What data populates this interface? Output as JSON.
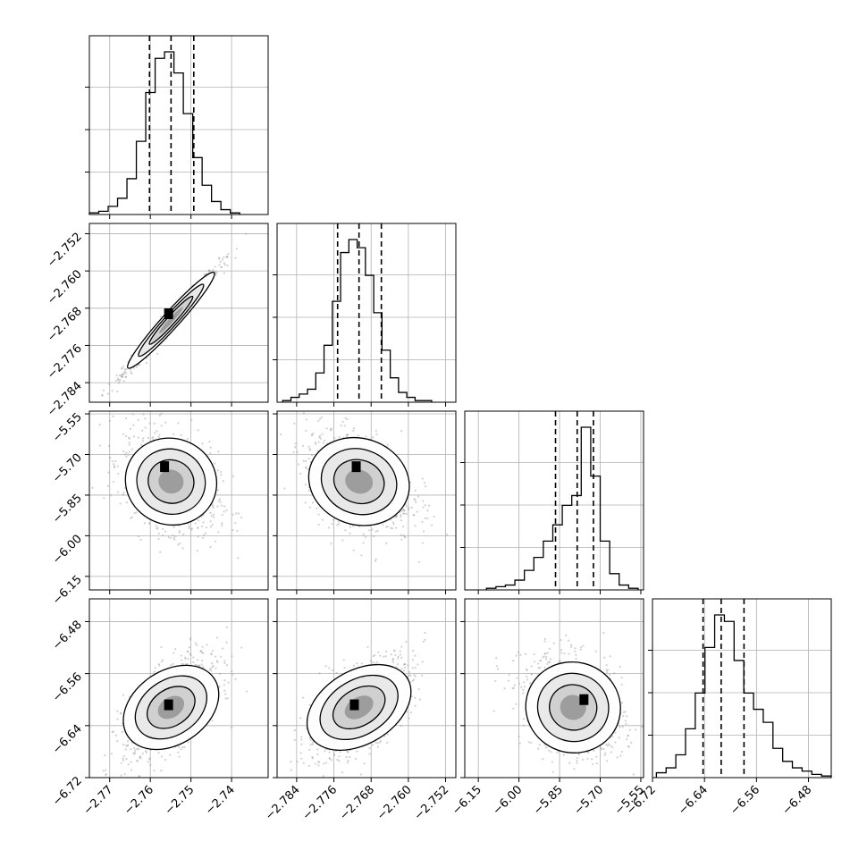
{
  "chart_data": {
    "type": "corner",
    "colors": {
      "hist": "#000000",
      "grid": "#b0b0b0",
      "scatter": "#9a9a9a",
      "contour": "#000000",
      "density_max": "#000000"
    },
    "grid": true,
    "parameters": [
      {
        "range": [
          -2.775,
          -2.731
        ],
        "ticks": [
          -2.77,
          -2.76,
          -2.75,
          -2.74
        ],
        "tick_labels": [
          "−2.77",
          "−2.76",
          "−2.75",
          "−2.74"
        ],
        "quantiles": [
          -2.7602,
          -2.7549,
          -2.7493
        ],
        "hist_counts": [
          1,
          2,
          5,
          10,
          22,
          45,
          75,
          96,
          100,
          87,
          62,
          35,
          18,
          8,
          3,
          1
        ],
        "hist_range": [
          -2.775,
          -2.738
        ],
        "scatter": {
          "mean": -2.7549,
          "sd": 0.0053
        }
      },
      {
        "range": [
          -2.7882,
          -2.7498
        ],
        "ticks": [
          -2.784,
          -2.776,
          -2.768,
          -2.76,
          -2.752
        ],
        "tick_labels": [
          "−2.784",
          "−2.776",
          "−2.768",
          "−2.760",
          "−2.752"
        ],
        "quantiles": [
          -2.7752,
          -2.7706,
          -2.7658
        ],
        "hist_counts": [
          1,
          3,
          5,
          8,
          18,
          35,
          62,
          92,
          100,
          95,
          78,
          55,
          32,
          15,
          6,
          3,
          1,
          1
        ],
        "hist_range": [
          -2.787,
          -2.755
        ],
        "scatter": {
          "mean": -2.7706,
          "sd": 0.0052
        }
      },
      {
        "range": [
          -6.2,
          -5.54
        ],
        "ticks": [
          -6.15,
          -6.0,
          -5.85,
          -5.7,
          -5.55
        ],
        "tick_labels": [
          "−6.15",
          "−6.00",
          "−5.85",
          "−5.70",
          "−5.55"
        ],
        "quantiles": [
          -5.865,
          -5.785,
          -5.725
        ],
        "hist_counts": [
          1,
          2,
          3,
          6,
          12,
          20,
          30,
          40,
          52,
          58,
          100,
          70,
          30,
          10,
          3,
          1
        ],
        "hist_range": [
          -6.12,
          -5.56
        ],
        "scatter": {
          "mean": -5.8,
          "sd": 0.085
        }
      },
      {
        "range": [
          -6.72,
          -6.445
        ],
        "ticks": [
          -6.72,
          -6.64,
          -6.56,
          -6.48
        ],
        "tick_labels": [
          "−6.72",
          "−6.64",
          "−6.56",
          "−6.48"
        ],
        "quantiles": [
          -6.6422,
          -6.6143,
          -6.5792
        ],
        "hist_counts": [
          3,
          6,
          14,
          30,
          52,
          80,
          100,
          96,
          72,
          52,
          42,
          34,
          18,
          10,
          6,
          4,
          2,
          1
        ],
        "hist_range": [
          -6.714,
          -6.445
        ],
        "scatter": {
          "mean": -6.612,
          "sd": 0.036
        }
      }
    ],
    "pairs": [
      {
        "x": 0,
        "y": 1,
        "corr": 0.985,
        "density_peak": [
          -2.7555,
          -2.7692
        ]
      },
      {
        "x": 0,
        "y": 2,
        "corr": -0.35,
        "density_peak": [
          -2.7565,
          -5.745
        ]
      },
      {
        "x": 1,
        "y": 2,
        "corr": -0.35,
        "density_peak": [
          -2.7712,
          -5.745
        ]
      },
      {
        "x": 0,
        "y": 3,
        "corr": 0.62,
        "density_peak": [
          -2.7555,
          -6.608
        ]
      },
      {
        "x": 1,
        "y": 3,
        "corr": 0.62,
        "density_peak": [
          -2.7716,
          -6.608
        ]
      },
      {
        "x": 2,
        "y": 3,
        "corr": -0.25,
        "density_peak": [
          -5.76,
          -6.6
        ]
      }
    ]
  }
}
